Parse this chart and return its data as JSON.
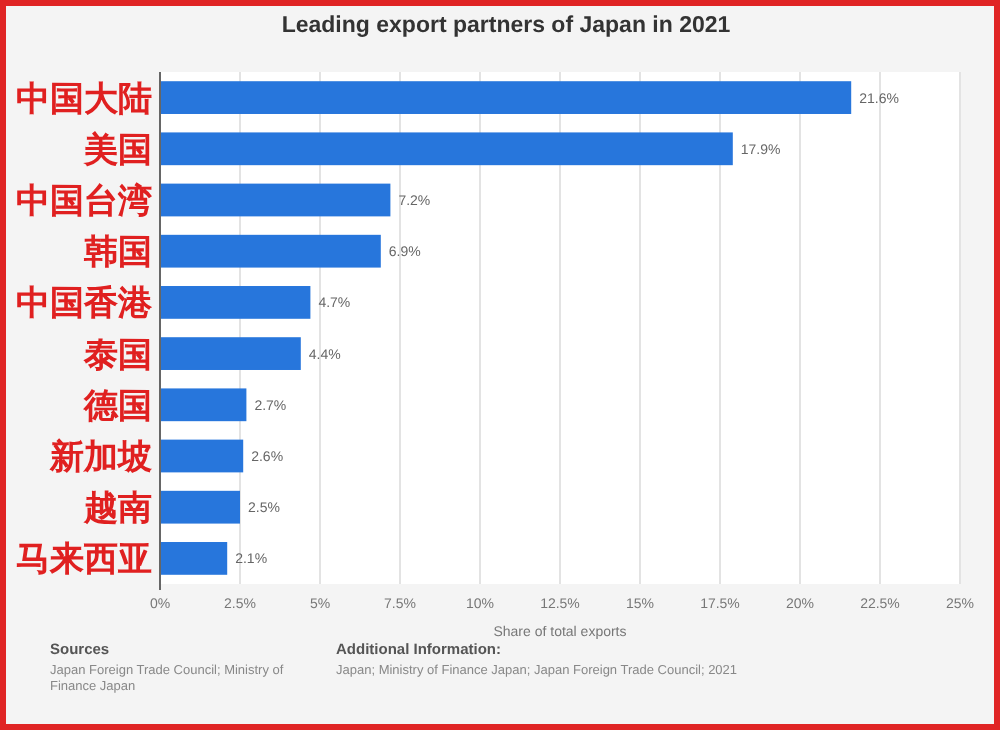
{
  "chart_data": {
    "type": "bar",
    "orientation": "horizontal",
    "title": "Leading export partners of Japan in 2021",
    "xlabel": "Share of total exports",
    "categories": [
      "中国大陆",
      "美国",
      "中国台湾",
      "韩国",
      "中国香港",
      "泰国",
      "德国",
      "新加坡",
      "越南",
      "马来西亚"
    ],
    "values": [
      21.6,
      17.9,
      7.2,
      6.9,
      4.7,
      4.4,
      2.7,
      2.6,
      2.5,
      2.1
    ],
    "value_labels": [
      "21.6%",
      "17.9%",
      "7.2%",
      "6.9%",
      "4.7%",
      "4.4%",
      "2.7%",
      "2.6%",
      "2.5%",
      "2.1%"
    ],
    "color": "#2776dc",
    "xlim": [
      0,
      25
    ],
    "xticks": [
      {
        "value": 0,
        "label": "0%"
      },
      {
        "value": 2.5,
        "label": "2.5%"
      },
      {
        "value": 5,
        "label": "5%"
      },
      {
        "value": 7.5,
        "label": "7.5%"
      },
      {
        "value": 10,
        "label": "10%"
      },
      {
        "value": 12.5,
        "label": "12.5%"
      },
      {
        "value": 15,
        "label": "15%"
      },
      {
        "value": 17.5,
        "label": "17.5%"
      },
      {
        "value": 20,
        "label": "20%"
      },
      {
        "value": 22.5,
        "label": "22.5%"
      },
      {
        "value": 25,
        "label": "25%"
      }
    ],
    "grid": "x",
    "annotations": [
      "Sources",
      "Japan Foreign Trade Council; Ministry of Finance Japan",
      "Additional Information:",
      "Japan; Ministry of Finance Japan; Japan Foreign Trade Council; 2021"
    ]
  }
}
